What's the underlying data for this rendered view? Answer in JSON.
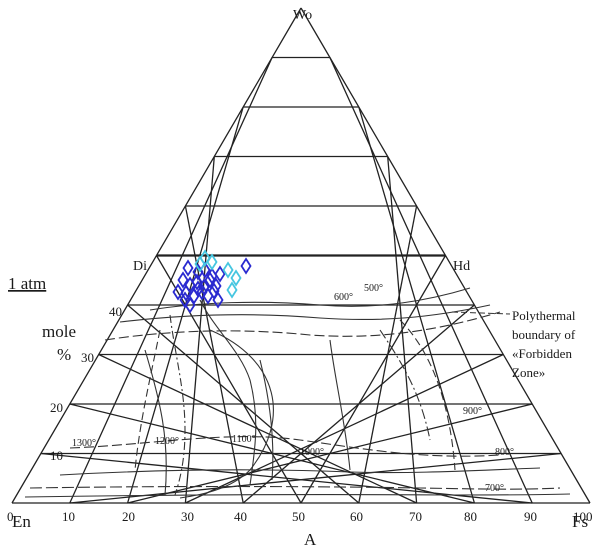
{
  "diagram": {
    "vertices": {
      "top": "Wo",
      "left": "En",
      "right": "Fs"
    },
    "join_labels": {
      "di": "Di",
      "hd": "Hd"
    },
    "bottom_ticks": [
      "0",
      "10",
      "20",
      "30",
      "40",
      "50",
      "60",
      "70",
      "80",
      "90",
      "100"
    ],
    "left_ticks": [
      "10",
      "20",
      "30",
      "40"
    ],
    "axis_title_bottom": "A",
    "pressure_label": "1 atm",
    "unit_label_1": "mole",
    "unit_label_2": "%",
    "annotation_lines": [
      "Polythermal",
      "boundary of",
      "«Forbidden",
      "Zone»"
    ],
    "isotherm_labels": [
      "1300°",
      "1200°",
      "1100°",
      "1000°",
      "900°",
      "800°",
      "700°",
      "600°",
      "500°"
    ],
    "colors": {
      "grid": "#222222",
      "points_dark": "#2a2ad0",
      "points_light": "#46c6e0"
    }
  }
}
